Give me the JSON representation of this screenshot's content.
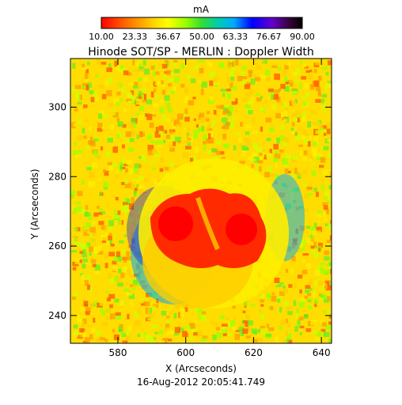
{
  "colorbar": {
    "unit": "mA",
    "tick_labels": [
      "10.00",
      "23.33",
      "36.67",
      "50.00",
      "63.33",
      "76.67",
      "90.00"
    ],
    "range": [
      10.0,
      90.0
    ],
    "colormap": [
      "#ff0000",
      "#ff6600",
      "#ffcc00",
      "#ffff00",
      "#99ff00",
      "#33dd33",
      "#00ccaa",
      "#00aaff",
      "#0000ff",
      "#6600cc",
      "#330033",
      "#000000"
    ]
  },
  "title": "Hinode SOT/SP - MERLIN : Doppler Width",
  "x_axis": {
    "label": "X (Arcseconds)",
    "ticks": [
      "580",
      "600",
      "620",
      "640"
    ],
    "range": [
      566,
      643
    ]
  },
  "y_axis": {
    "label": "Y (Arcseconds)",
    "ticks": [
      "240",
      "260",
      "280",
      "300"
    ],
    "range": [
      232,
      314
    ]
  },
  "timestamp": "16-Aug-2012 20:05:41.749",
  "colors": {
    "axis": "#000000",
    "background": "#ffffff"
  }
}
